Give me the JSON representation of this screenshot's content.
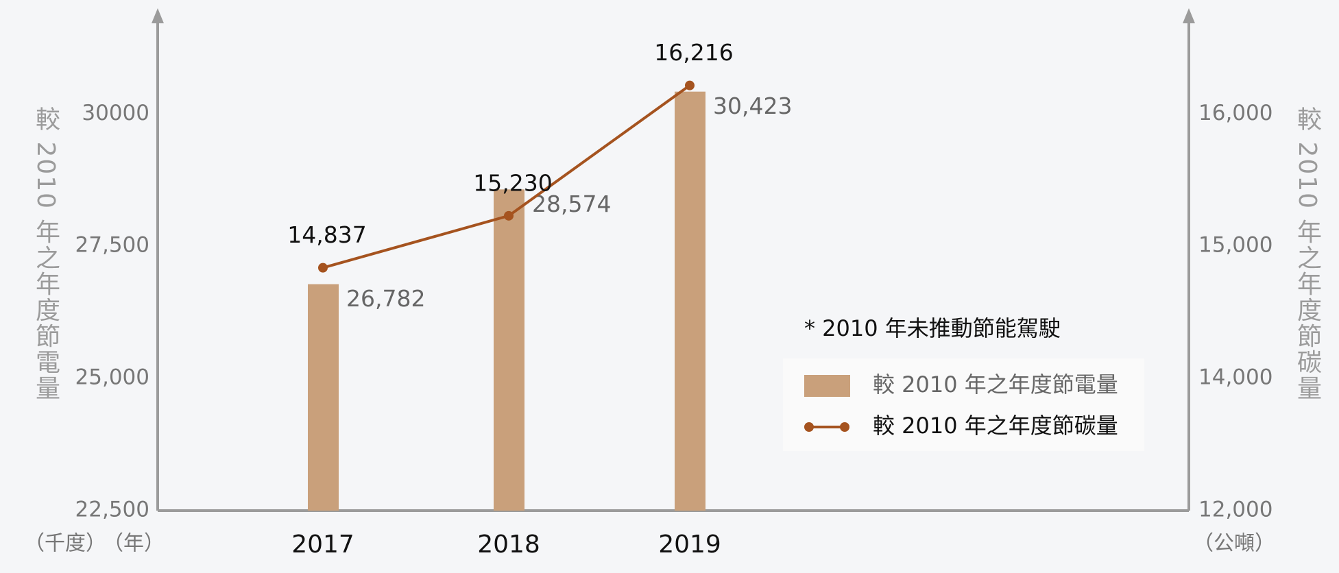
{
  "chart_data": {
    "type": "bar",
    "categories": [
      "2017",
      "2018",
      "2019"
    ],
    "series": [
      {
        "name": "較 2010 年之年度節電量",
        "color": "#c9a07b",
        "values": [
          26782,
          28574,
          30423
        ],
        "value_labels": [
          "26,782",
          "28,574",
          "30,423"
        ]
      },
      {
        "name": "較 2010 年之年度節碳量",
        "type": "line",
        "axis": "y2",
        "color": "#a5531f",
        "values": [
          14837,
          15230,
          16216
        ],
        "value_labels": [
          "14,837",
          "15,230",
          "16,216"
        ]
      }
    ],
    "ylim": [
      22500,
      32000
    ],
    "yticks": [
      {
        "value": 22500,
        "label": "22,500"
      },
      {
        "value": 25000,
        "label": "25,000"
      },
      {
        "value": 27500,
        "label": "27,500"
      },
      30000
    ],
    "y2lim": [
      12000,
      16600
    ],
    "y2ticks": [
      {
        "value": 12000,
        "label": "12,000"
      },
      {
        "value": 14000,
        "label": "14,000"
      },
      {
        "value": 15000,
        "label": "15,000"
      },
      {
        "value": 16000,
        "label": "16,000"
      }
    ],
    "ylabel": "較 2010 年之年度節電量",
    "y2label": "較 2010 年之年度節碳量",
    "yunit": "（千度）",
    "xunit": "（年）",
    "y2unit": "（公噸）",
    "note": "* 2010 年未推動節能駕駛"
  }
}
